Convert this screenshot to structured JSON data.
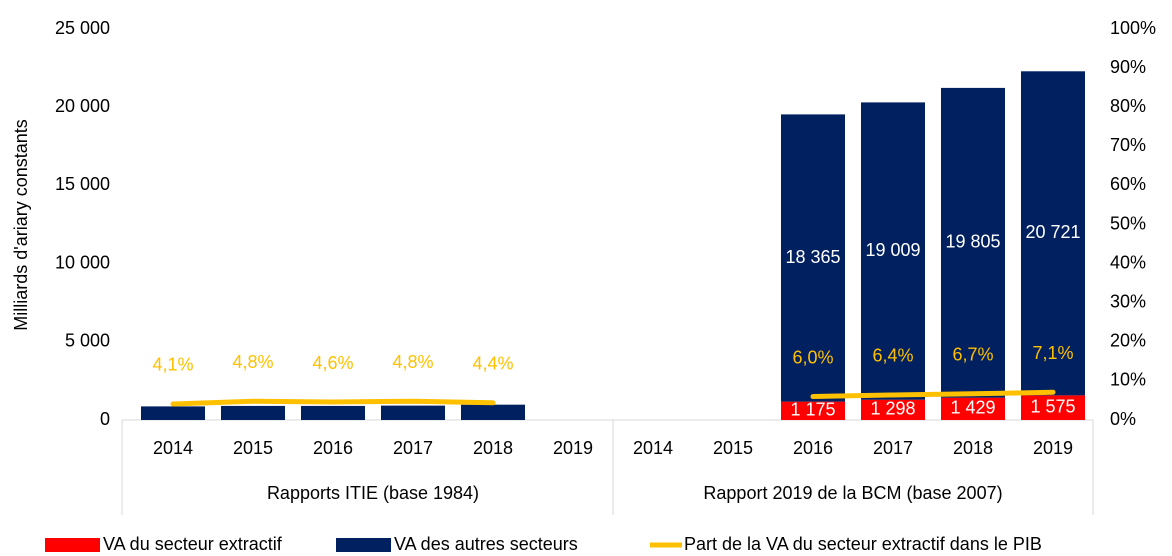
{
  "chart_data": {
    "type": "bar",
    "stacked": true,
    "y_label": "Milliards d'ariary constants",
    "categories": [
      "2014",
      "2015",
      "2016",
      "2017",
      "2018",
      "2019",
      "2014",
      "2015",
      "2016",
      "2017",
      "2018",
      "2019"
    ],
    "category_groups": [
      "Rapports ITIE (base 1984)",
      "Rapport 2019 de la BCM (base 2007)"
    ],
    "series": [
      {
        "name": "VA du secteur extractif",
        "color": "#ff0000",
        "values": [
          null,
          null,
          null,
          null,
          null,
          null,
          null,
          null,
          1175,
          1298,
          1429,
          1575
        ],
        "value_labels": [
          null,
          null,
          null,
          null,
          null,
          null,
          null,
          null,
          "1 175",
          "1 298",
          "1 429",
          "1 575"
        ]
      },
      {
        "name": "VA des autres secteurs",
        "color": "#002060",
        "values": [
          870,
          900,
          900,
          920,
          980,
          null,
          null,
          null,
          18365,
          19009,
          19805,
          20721
        ],
        "value_labels": [
          null,
          null,
          null,
          null,
          null,
          null,
          null,
          null,
          "18 365",
          "19 009",
          "19 805",
          "20 721"
        ]
      },
      {
        "name": "Part de la VA du secteur extractif dans le PIB",
        "color": "#ffc000",
        "type": "line",
        "axis": "y2",
        "values": [
          4.1,
          4.8,
          4.6,
          4.8,
          4.4,
          null,
          null,
          null,
          6.0,
          6.4,
          6.7,
          7.1
        ],
        "value_labels": [
          "4,1%",
          "4,8%",
          "4,6%",
          "4,8%",
          "4,4%",
          null,
          null,
          null,
          "6,0%",
          "6,4%",
          "6,7%",
          "7,1%"
        ]
      }
    ],
    "ylim": [
      0,
      25000
    ],
    "yticks": [
      0,
      {
        "value": 5000,
        "label": "5 000"
      },
      {
        "value": 10000,
        "label": "10 000"
      },
      {
        "value": 15000,
        "label": "15 000"
      },
      {
        "value": 20000,
        "label": "20 000"
      },
      {
        "value": 25000,
        "label": "25 000"
      }
    ],
    "y2lim": [
      0,
      100
    ],
    "y2ticks": [
      {
        "value": 0,
        "label": "0%"
      },
      {
        "value": 10,
        "label": "10%"
      },
      {
        "value": 20,
        "label": "20%"
      },
      {
        "value": 30,
        "label": "30%"
      },
      {
        "value": 40,
        "label": "40%"
      },
      {
        "value": 50,
        "label": "50%"
      },
      {
        "value": 60,
        "label": "60%"
      },
      {
        "value": 70,
        "label": "70%"
      },
      {
        "value": 80,
        "label": "80%"
      },
      {
        "value": 90,
        "label": "90%"
      },
      {
        "value": 100,
        "label": "100%"
      }
    ],
    "grid": false,
    "legend": "bottom"
  }
}
